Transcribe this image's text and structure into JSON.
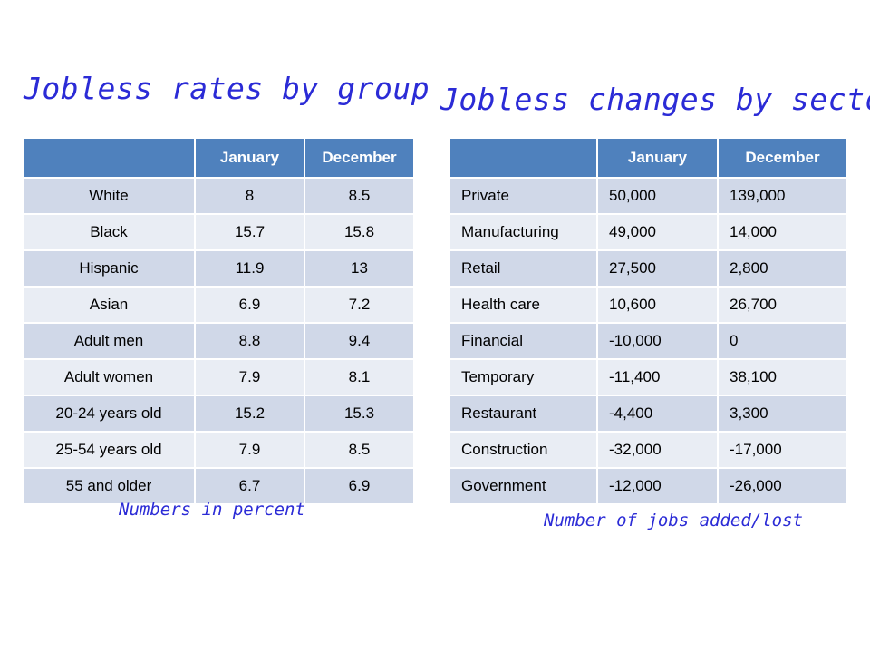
{
  "left": {
    "title": "Jobless rates by group",
    "caption": "Numbers in percent",
    "headers": [
      "",
      "January",
      "December"
    ],
    "rows": [
      [
        "White",
        "8",
        "8.5"
      ],
      [
        "Black",
        "15.7",
        "15.8"
      ],
      [
        "Hispanic",
        "11.9",
        "13"
      ],
      [
        "Asian",
        "6.9",
        "7.2"
      ],
      [
        "Adult men",
        "8.8",
        "9.4"
      ],
      [
        "Adult women",
        "7.9",
        "8.1"
      ],
      [
        "20-24 years old",
        "15.2",
        "15.3"
      ],
      [
        "25-54 years old",
        "7.9",
        "8.5"
      ],
      [
        "55 and older",
        "6.7",
        "6.9"
      ]
    ]
  },
  "right": {
    "title": "Jobless changes by sector",
    "caption": "Number of jobs added/lost",
    "headers": [
      "",
      "January",
      "December"
    ],
    "rows": [
      [
        "Private",
        "50,000",
        "139,000"
      ],
      [
        "Manufacturing",
        "49,000",
        "14,000"
      ],
      [
        "Retail",
        "27,500",
        "2,800"
      ],
      [
        "Health care",
        "10,600",
        "26,700"
      ],
      [
        "Financial",
        "-10,000",
        "0"
      ],
      [
        "Temporary",
        "-11,400",
        "38,100"
      ],
      [
        "Restaurant",
        "-4,400",
        "3,300"
      ],
      [
        "Construction",
        "-32,000",
        "-17,000"
      ],
      [
        "Government",
        "-12,000",
        "-26,000"
      ]
    ]
  },
  "colors": {
    "title_blue": "#2b2bd6",
    "header_blue": "#4f81bd",
    "row_dark": "#d0d8e8",
    "row_light": "#e9edf4"
  }
}
